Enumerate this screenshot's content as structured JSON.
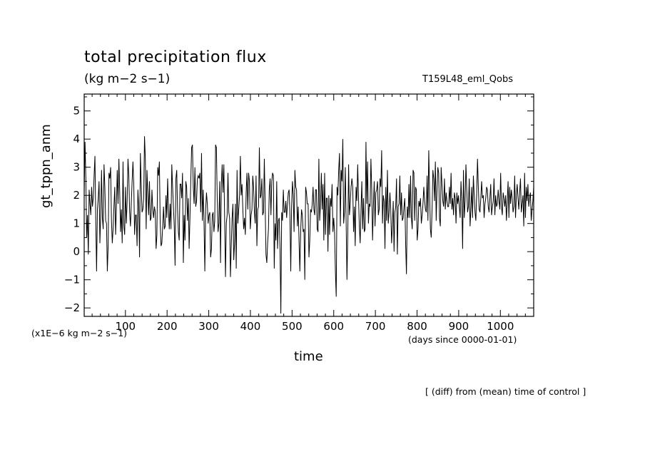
{
  "chart_data": {
    "type": "line",
    "title": "total precipitation flux",
    "units_label": "(kg m−2 s−1)",
    "run_label": "T159L48_eml_Qobs",
    "ylabel": "gt_tppn_anm",
    "xlabel": "time",
    "y_scale_label": "(x1E−6 kg m−2 s−1)",
    "x_units_label": "(days since 0000-01-01)",
    "note": "[ (diff) from (mean) time of control ]",
    "xlim": [
      1,
      1080
    ],
    "ylim": [
      -2.3,
      5.6
    ],
    "x_ticks": [
      100,
      200,
      300,
      400,
      500,
      600,
      700,
      800,
      900,
      1000
    ],
    "y_ticks": [
      -2,
      -1,
      0,
      1,
      2,
      3,
      4,
      5
    ],
    "grid": false,
    "line_color": "#000000",
    "series": [
      {
        "values": [
          2.0,
          3.9,
          2.6,
          0.5,
          1.3,
          -0.1,
          2.2,
          1.7,
          1.3,
          2.3,
          1.6,
          1.9,
          2.7,
          3.4,
          1.1,
          -0.7,
          1.5,
          1.9,
          2.5,
          0.3,
          1.3,
          2.9,
          1.2,
          0.8,
          3.1,
          2.3,
          1.1,
          1.0,
          -0.7,
          0.2,
          2.8,
          2.6,
          3.0,
          1.1,
          0.3,
          0.8,
          1.6,
          2.3,
          0.6,
          1.6,
          2.9,
          1.7,
          3.3,
          2.1,
          0.7,
          1.5,
          0.3,
          3.2,
          0.9,
          0.6,
          2.3,
          1.0,
          1.8,
          3.3,
          2.7,
          1.4,
          0.9,
          1.7,
          2.5,
          3.2,
          2.4,
          0.6,
          1.3,
          1.3,
          0.2,
          2.2,
          1.6,
          -0.2,
          3.5,
          2.4,
          1.4,
          1.5,
          1.9,
          4.1,
          3.3,
          0.8,
          2.9,
          2.1,
          1.3,
          2.5,
          1.1,
          1.2,
          2.2,
          1.5,
          1.2,
          1.6,
          1.4,
          0.1,
          0.6,
          3.0,
          2.7,
          3.2,
          1.0,
          0.2,
          0.3,
          0.9,
          1.6,
          0.8,
          0.9,
          2.0,
          1.2,
          2.6,
          1.5,
          0.8,
          1.7,
          0.8,
          3.1,
          2.3,
          1.6,
          0.9,
          -0.5,
          2.6,
          2.9,
          1.5,
          0.7,
          0.4,
          2.4,
          2.4,
          1.9,
          2.8,
          -0.4,
          1.3,
          0.4,
          2.5,
          2.3,
          1.1,
          1.9,
          0.1,
          1.2,
          2.5,
          3.7,
          3.8,
          2.3,
          1.7,
          3.0,
          1.6,
          1.8,
          2.6,
          2.7,
          2.6,
          2.8,
          1.4,
          3.5,
          1.1,
          2.2,
          1.1,
          -0.7,
          1.5,
          2.1,
          1.7,
          1.0,
          1.3,
          1.4,
          -0.2,
          0.1,
          1.3,
          1.4,
          0.7,
          1.1,
          3.8,
          3.7,
          1.9,
          0.7,
          1.0,
          2.5,
          -0.4,
          2.4,
          3.1,
          2.1,
          3.1,
          1.1,
          -0.9,
          1.0,
          1.3,
          2.8,
          1.4,
          1.2,
          -0.9,
          0.2,
          1.2,
          1.7,
          -0.3,
          0.3,
          1.7,
          -0.6,
          2.9,
          1.0,
          1.5,
          2.0,
          3.4,
          2.0,
          2.4,
          1.5,
          0.8,
          1.2,
          0.6,
          2.1,
          2.8,
          1.5,
          2.8,
          2.5,
          0.8,
          1.3,
          1.5,
          2.7,
          2.3,
          1.4,
          1.0,
          2.7,
          0.2,
          1.5,
          1.6,
          3.7,
          1.9,
          2.0,
          2.6,
          1.3,
          1.4,
          3.3,
          1.7,
          -0.1,
          -0.4,
          0.3,
          0.8,
          2.2,
          2.6,
          1.3,
          2.5,
          2.8,
          2.7,
          -0.6,
          1.0,
          0.4,
          2.5,
          0.1,
          1.1,
          1.2,
          0.1,
          -2.2,
          1.4,
          1.1,
          2.2,
          1.4,
          1.4,
          1.8,
          1.2,
          1.7,
          2.1,
          2.2,
          1.3,
          -0.7,
          1.6,
          2.5,
          2.0,
          0.7,
          2.9,
          2.3,
          2.2,
          0.9,
          1.6,
          0.4,
          -0.7,
          0.7,
          1.5,
          1.3,
          0.7,
          0.8,
          -1.0,
          2.3,
          2.1,
          1.7,
          1.7,
          -0.2,
          0.4,
          1.5,
          1.4,
          1.7,
          2.3,
          1.5,
          1.3,
          2.2,
          2.2,
          0.8,
          0.7,
          3.3,
          1.1,
          1.7,
          2.8,
          1.5,
          2.4,
          0.4,
          2.8,
          0.6,
          1.9,
          1.9,
          0.0,
          2.0,
          0.6,
          1.9,
          1.6,
          2.4,
          0.7,
          1.2,
          0.7,
          -0.7,
          -1.6,
          2.3,
          2.0,
          2.9,
          3.5,
          0.9,
          2.9,
          2.5,
          4.0,
          1.0,
          1.4,
          3.0,
          1.1,
          -1.0,
          0.6,
          3.1,
          1.3,
          1.7,
          2.3,
          2.6,
          2.3,
          0.7,
          1.6,
          0.2,
          2.3,
          1.8,
          3.1,
          1.9,
          0.9,
          0.3,
          1.5,
          2.5,
          0.8,
          1.9,
          0.7,
          0.8,
          3.9,
          1.7,
          3.2,
          1.0,
          1.7,
          1.6,
          3.3,
          2.2,
          0.4,
          1.6,
          2.5,
          0.9,
          2.1,
          2.2,
          2.5,
          1.3,
          1.5,
          2.6,
          2.3,
          3.6,
          1.0,
          2.0,
          1.8,
          0.1,
          2.3,
          1.1,
          2.9,
          1.0,
          1.4,
          2.1,
          1.5,
          0.3,
          0.9,
          1.8,
          0.0,
          1.4,
          1.6,
          2.6,
          -0.1,
          1.6,
          1.7,
          2.7,
          1.3,
          2.1,
          1.1,
          1.2,
          1.6,
          1.9,
          0.3,
          -0.8,
          1.6,
          1.2,
          2.4,
          1.2,
          2.7,
          1.2,
          0.8,
          2.9,
          2.8,
          1.1,
          2.3,
          2.2,
          0.4,
          0.8,
          1.8,
          1.6,
          1.9,
          1.0,
          1.3,
          1.7,
          2.3,
          1.8,
          1.5,
          1.4,
          2.7,
          1.1,
          3.6,
          2.2,
          0.8,
          0.5,
          1.5,
          2.9,
          2.6,
          1.8,
          3.2,
          1.1,
          2.2,
          3.0,
          2.8,
          1.2,
          0.9,
          3.0,
          2.4,
          1.8,
          1.6,
          2.6,
          1.5,
          2.1,
          1.8,
          1.6,
          1.6,
          2.3,
          1.7,
          2.8,
          1.5,
          1.9,
          1.3,
          2.1,
          1.9,
          1.0,
          2.1,
          1.7,
          2.0,
          1.6,
          1.2,
          2.5,
          1.8,
          0.1,
          2.9,
          1.2,
          1.8,
          3.1,
          2.2,
          1.4,
          1.6,
          2.6,
          0.9,
          1.5,
          2.3,
          1.2,
          2.7,
          2.0,
          1.4,
          1.1,
          2.1,
          3.3,
          2.3,
          1.5,
          1.4,
          1.9,
          2.5,
          1.9,
          2.0,
          1.2,
          1.7,
          1.9,
          2.3,
          2.2,
          1.6,
          1.4,
          1.9,
          2.4,
          1.3,
          1.6,
          1.8,
          2.6,
          1.3,
          2.0,
          1.6,
          1.7,
          2.2,
          1.8,
          1.5,
          2.8,
          1.6,
          1.3,
          2.1,
          1.9,
          1.6,
          2.0,
          1.1,
          1.8,
          2.5,
          1.2,
          2.3,
          1.7,
          2.2,
          1.9,
          1.4,
          1.6,
          2.7,
          1.2,
          2.0,
          2.4,
          1.9,
          1.5,
          2.1,
          2.6,
          1.4,
          1.7,
          2.0,
          0.9,
          2.8,
          1.2,
          2.3,
          1.8,
          2.4,
          1.6,
          1.9,
          2.1,
          1.1,
          1.5,
          1.8,
          2.3
        ]
      }
    ]
  }
}
